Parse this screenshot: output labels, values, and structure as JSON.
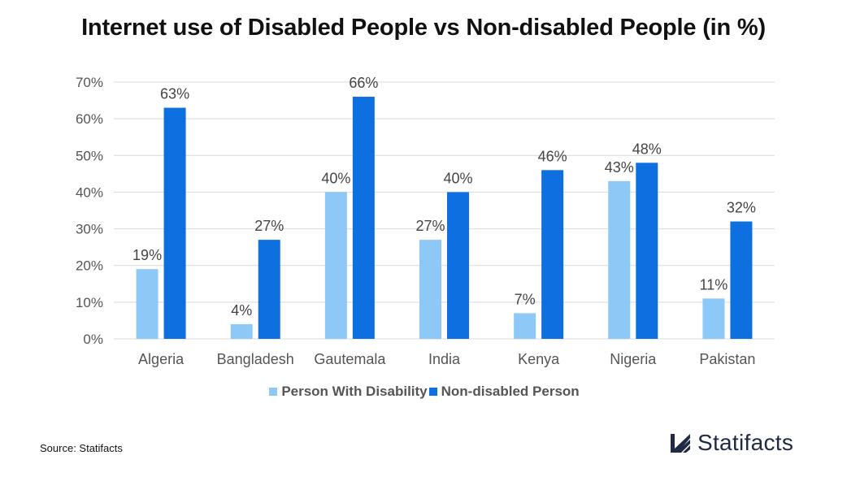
{
  "chart_data": {
    "type": "bar",
    "title": "Internet use of Disabled People vs Non-disabled People (in %)",
    "categories": [
      "Algeria",
      "Bangladesh",
      "Gautemala",
      "India",
      "Kenya",
      "Nigeria",
      "Pakistan"
    ],
    "series": [
      {
        "name": "Person With Disability",
        "values": [
          19,
          4,
          40,
          27,
          7,
          43,
          11
        ],
        "color": "#8ec8f7"
      },
      {
        "name": "Non-disabled Person",
        "values": [
          63,
          27,
          66,
          40,
          46,
          48,
          32
        ],
        "color": "#0d6fe0"
      }
    ],
    "yticks": [
      "0%",
      "10%",
      "20%",
      "30%",
      "40%",
      "50%",
      "60%",
      "70%"
    ],
    "ylim": [
      0,
      70
    ],
    "value_suffix": "%",
    "xlabel": "",
    "ylabel": "",
    "grid": true,
    "legend_position": "bottom"
  },
  "footer": {
    "source": "Source: Statifacts",
    "brand": "Statifacts"
  },
  "colors": {
    "grid": "#d9d9d9",
    "brand": "#1f2a44"
  }
}
